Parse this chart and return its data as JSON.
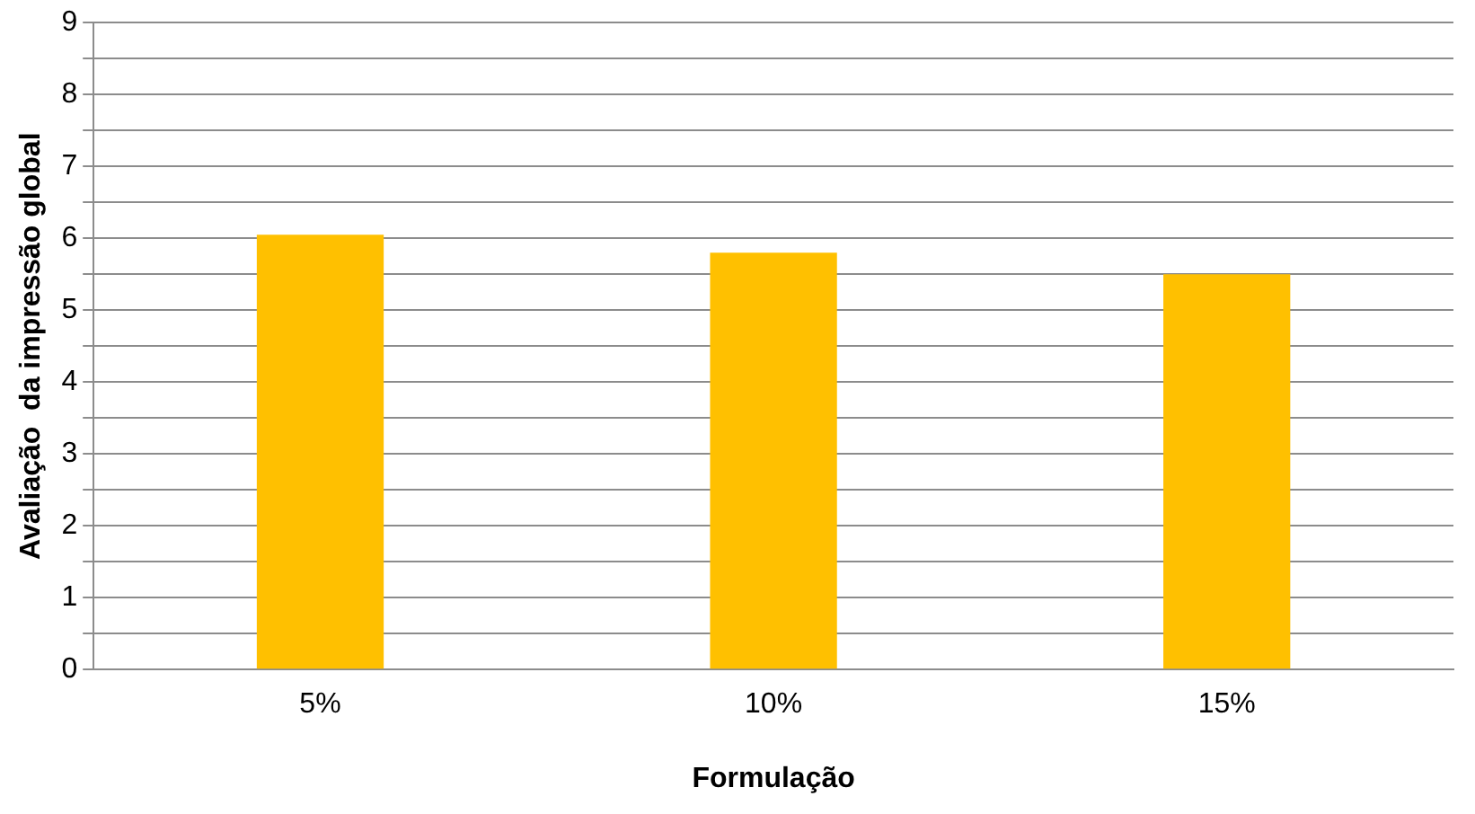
{
  "chart_data": {
    "type": "bar",
    "xlabel": "Formulação",
    "ylabel": "Avaliação  da impressão global",
    "categories": [
      "5%",
      "10%",
      "15%"
    ],
    "values": [
      6.05,
      5.8,
      5.5
    ],
    "color": "#ffc000",
    "ylim": [
      0,
      9
    ],
    "yticks": [
      0,
      {
        "value": 0.5,
        "label": null
      },
      1,
      {
        "value": 1.5,
        "label": null
      },
      2,
      {
        "value": 2.5,
        "label": null
      },
      3,
      {
        "value": 3.5,
        "label": null
      },
      4,
      {
        "value": 4.5,
        "label": null
      },
      5,
      {
        "value": 5.5,
        "label": null
      },
      6,
      {
        "value": 6.5,
        "label": null
      },
      7,
      {
        "value": 7.5,
        "label": null
      },
      8,
      {
        "value": 8.5,
        "label": null
      },
      9
    ],
    "grid": "y",
    "legend": false
  }
}
